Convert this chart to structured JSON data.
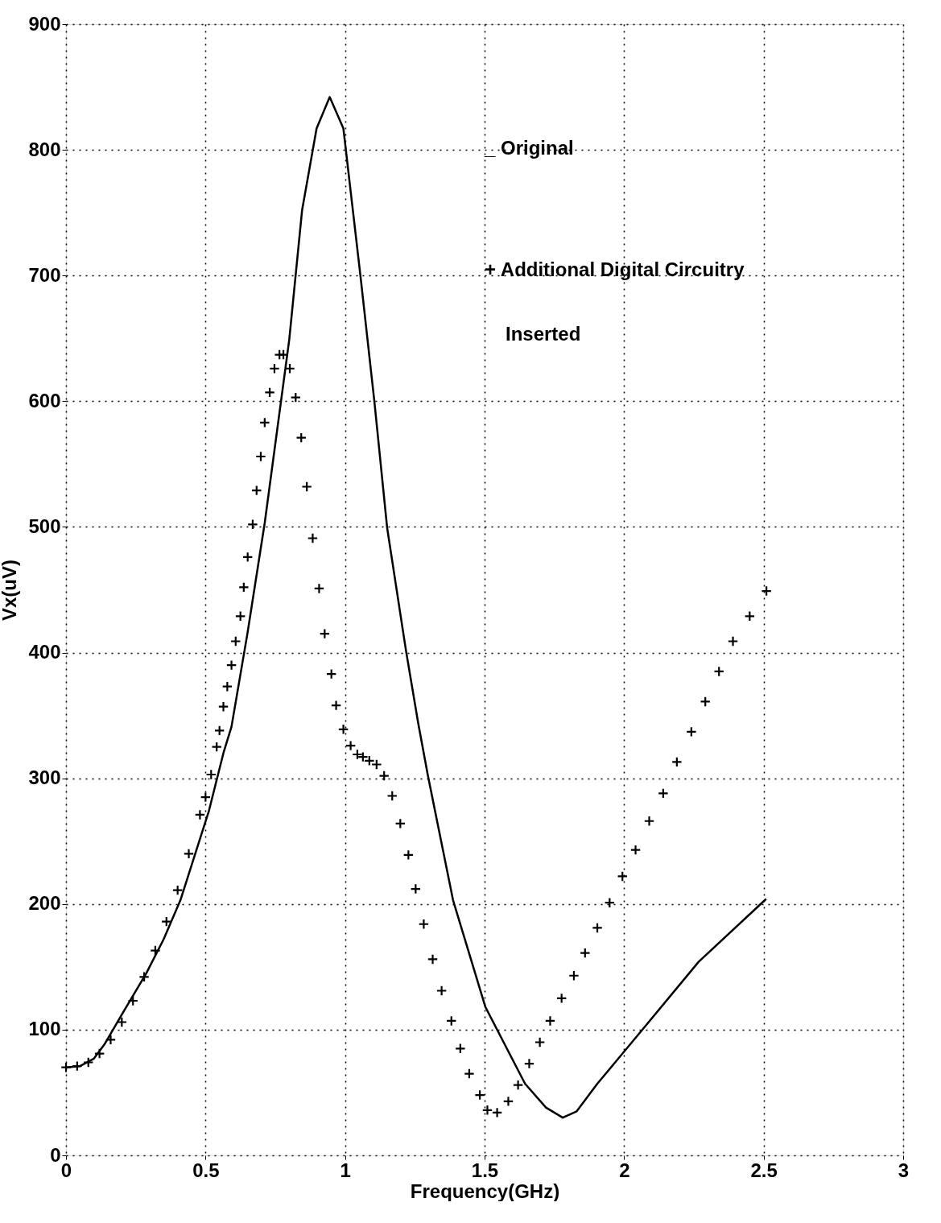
{
  "chart_data": {
    "type": "line",
    "xlabel": "Frequency(GHz)",
    "ylabel": "Vx(uV)",
    "xlim": [
      0,
      3
    ],
    "ylim": [
      0,
      900
    ],
    "xticks": [
      0,
      0.5,
      1,
      1.5,
      2,
      2.5,
      3
    ],
    "yticks": [
      0,
      100,
      200,
      300,
      400,
      500,
      600,
      700,
      800,
      900
    ],
    "grid": true,
    "annotations": [
      "_ Original",
      "+ Additional Digital Circuitry",
      "Inserted"
    ],
    "series": [
      {
        "color": "#000000",
        "marker": "none",
        "line_style": "solid",
        "x": [
          0,
          0.05,
          0.1,
          0.137,
          0.2,
          0.288,
          0.35,
          0.41,
          0.512,
          0.564,
          0.593,
          0.65,
          0.712,
          0.8,
          0.846,
          0.898,
          0.945,
          0.994,
          1.055,
          1.105,
          1.151,
          1.218,
          1.262,
          1.297,
          1.387,
          1.503,
          1.645,
          1.72,
          1.78,
          1.83,
          1.904,
          2.073,
          2.267,
          2.509
        ],
        "values": [
          70,
          71,
          77,
          88,
          112,
          145,
          172,
          203,
          274,
          320,
          341,
          415,
          503,
          649,
          752,
          817,
          842,
          817,
          700,
          600,
          499,
          402,
          344,
          302,
          203,
          118,
          57,
          38,
          30,
          35,
          57,
          102,
          154,
          204
        ]
      },
      {
        "type": "scatter",
        "color": "#000000",
        "marker": "cross",
        "x": [
          0,
          0.04,
          0.08,
          0.12,
          0.16,
          0.2,
          0.24,
          0.28,
          0.32,
          0.36,
          0.4,
          0.44,
          0.48,
          0.5,
          0.52,
          0.54,
          0.55,
          0.564,
          0.578,
          0.593,
          0.608,
          0.625,
          0.637,
          0.651,
          0.669,
          0.683,
          0.698,
          0.712,
          0.73,
          0.747,
          0.765,
          0.779,
          0.802,
          0.823,
          0.843,
          0.863,
          0.884,
          0.907,
          0.927,
          0.951,
          0.968,
          0.994,
          1.02,
          1.044,
          1.064,
          1.087,
          1.113,
          1.14,
          1.169,
          1.198,
          1.227,
          1.253,
          1.282,
          1.314,
          1.346,
          1.381,
          1.413,
          1.445,
          1.483,
          1.51,
          1.545,
          1.585,
          1.62,
          1.66,
          1.698,
          1.735,
          1.776,
          1.82,
          1.86,
          1.904,
          1.948,
          1.994,
          2.041,
          2.09,
          2.14,
          2.189,
          2.241,
          2.291,
          2.34,
          2.39,
          2.45,
          2.51
        ],
        "values": [
          70,
          71,
          74,
          81,
          92,
          106,
          123,
          142,
          163,
          186,
          211,
          240,
          271,
          285,
          303,
          325,
          338,
          357,
          373,
          390,
          409,
          429,
          452,
          476,
          502,
          529,
          556,
          583,
          607,
          626,
          637,
          637,
          626,
          603,
          571,
          532,
          491,
          451,
          415,
          383,
          358,
          339,
          326,
          319,
          317,
          314,
          311,
          302,
          286,
          264,
          239,
          212,
          184,
          156,
          131,
          107,
          85,
          65,
          48,
          36,
          34,
          43,
          56,
          73,
          90,
          107,
          125,
          143,
          161,
          181,
          201,
          222,
          243,
          266,
          288,
          313,
          337,
          361,
          385,
          409,
          429,
          449
        ]
      }
    ]
  }
}
